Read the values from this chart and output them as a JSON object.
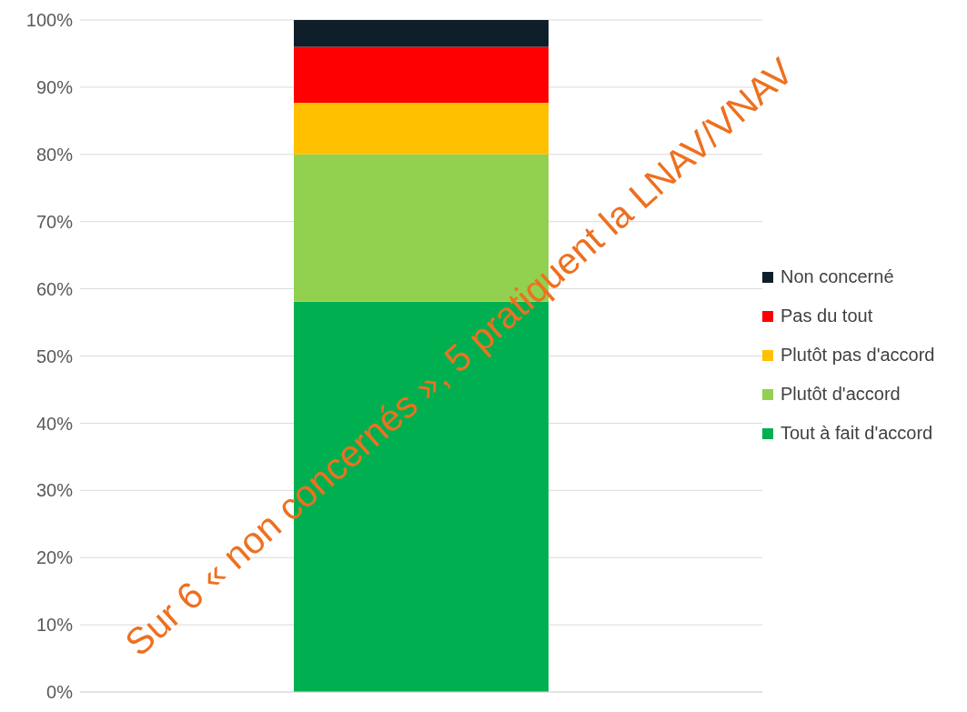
{
  "chart_data": {
    "type": "bar",
    "stacked": true,
    "categories": [
      null
    ],
    "series": [
      {
        "name": "Tout à fait d'accord",
        "color": "#00b050",
        "values": [
          58.1
        ]
      },
      {
        "name": "Plutôt d'accord",
        "color": "#92d050",
        "values": [
          21.9
        ]
      },
      {
        "name": "Plutôt pas d'accord",
        "color": "#ffc000",
        "values": [
          7.7
        ]
      },
      {
        "name": "Pas du tout",
        "color": "#ff0000",
        "values": [
          8.3
        ]
      },
      {
        "name": "Non concerné",
        "color": "#0e1e2b",
        "values": [
          4.0
        ]
      }
    ],
    "ylim": [
      0,
      100
    ],
    "yticks": [
      {
        "value": 0,
        "label": "0%"
      },
      {
        "value": 10,
        "label": "10%"
      },
      {
        "value": 20,
        "label": "20%"
      },
      {
        "value": 30,
        "label": "30%"
      },
      {
        "value": 40,
        "label": "40%"
      },
      {
        "value": 50,
        "label": "50%"
      },
      {
        "value": 60,
        "label": "60%"
      },
      {
        "value": 70,
        "label": "70%"
      },
      {
        "value": 80,
        "label": "80%"
      },
      {
        "value": 90,
        "label": "90%"
      },
      {
        "value": 100,
        "label": "100%"
      }
    ],
    "grid": "y",
    "legend": "right",
    "annotations": [
      "Sur 6 « non concernés », 5 pratiquent la LNAV/VNAV"
    ]
  }
}
